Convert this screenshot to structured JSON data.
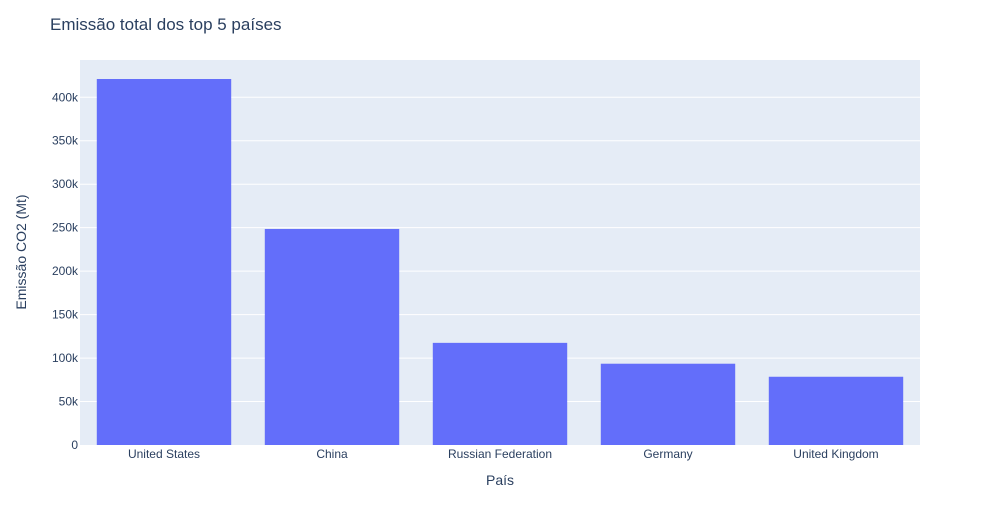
{
  "chart_data": {
    "type": "bar",
    "title": "Emissão total dos top 5 países",
    "xlabel": "País",
    "ylabel": "Emissão CO2 (Mt)",
    "categories": [
      "United States",
      "China",
      "Russian Federation",
      "Germany",
      "United Kingdom"
    ],
    "values": [
      421000,
      248500,
      117500,
      93500,
      78500
    ],
    "ylim": [
      0,
      421000
    ],
    "yticks": [
      0,
      50000,
      100000,
      150000,
      200000,
      250000,
      300000,
      350000,
      400000
    ],
    "ytick_labels": [
      "0",
      "50k",
      "100k",
      "150k",
      "200k",
      "250k",
      "300k",
      "350k",
      "400k"
    ],
    "grid": true,
    "colors": {
      "bar": "#636efa",
      "plot_bg": "#e5ecf6",
      "grid": "#ffffff",
      "text": "#2a3f5f"
    }
  }
}
